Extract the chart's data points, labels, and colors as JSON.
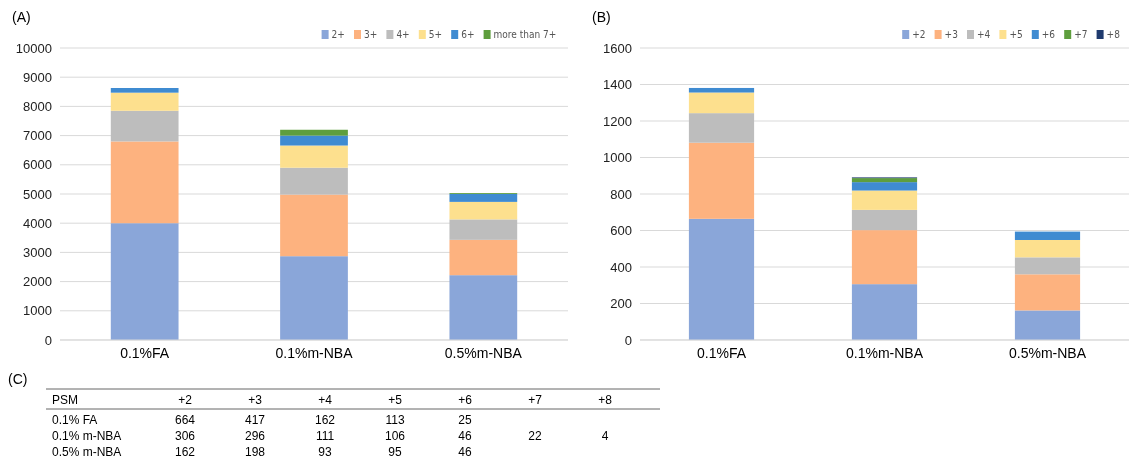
{
  "chart_data": [
    {
      "type": "bar",
      "title": "(A)",
      "stacked": true,
      "categories": [
        "0.1%FA",
        "0.1%m-NBA",
        "0.5%m-NBA"
      ],
      "ylim": [
        0,
        10000
      ],
      "yticks": [
        0,
        1000,
        2000,
        3000,
        4000,
        5000,
        6000,
        7000,
        8000,
        9000,
        10000
      ],
      "grid": "y",
      "legend": "top right",
      "series": [
        {
          "name": "2+",
          "color": "#8aa6d9",
          "values": [
            4000,
            2870,
            2220
          ]
        },
        {
          "name": "3+",
          "color": "#fdb27f",
          "values": [
            2800,
            2110,
            1210
          ]
        },
        {
          "name": "4+",
          "color": "#bdbdbd",
          "values": [
            1050,
            920,
            700
          ]
        },
        {
          "name": "5+",
          "color": "#fde08e",
          "values": [
            620,
            760,
            600
          ]
        },
        {
          "name": "6+",
          "color": "#3f8bd1",
          "values": [
            160,
            340,
            270
          ]
        },
        {
          "name": "more than 7+",
          "color": "#5e9e3d",
          "values": [
            null,
            200,
            30
          ]
        }
      ]
    },
    {
      "type": "bar",
      "title": "(B)",
      "stacked": true,
      "categories": [
        "0.1%FA",
        "0.1%m-NBA",
        "0.5%m-NBA"
      ],
      "ylim": [
        0,
        1600
      ],
      "yticks": [
        0,
        200,
        400,
        600,
        800,
        1000,
        1200,
        1400,
        1600
      ],
      "grid": "y",
      "legend": "top right",
      "series": [
        {
          "name": "+2",
          "color": "#8aa6d9",
          "values": [
            664,
            306,
            162
          ]
        },
        {
          "name": "+3",
          "color": "#fdb27f",
          "values": [
            417,
            296,
            198
          ]
        },
        {
          "name": "+4",
          "color": "#bdbdbd",
          "values": [
            162,
            111,
            93
          ]
        },
        {
          "name": "+5",
          "color": "#fde08e",
          "values": [
            113,
            106,
            95
          ]
        },
        {
          "name": "+6",
          "color": "#3f8bd1",
          "values": [
            25,
            46,
            46
          ]
        },
        {
          "name": "+7",
          "color": "#5e9e3d",
          "values": [
            null,
            22,
            null
          ]
        },
        {
          "name": "+8",
          "color": "#1f3a6e",
          "values": [
            null,
            4,
            null
          ]
        }
      ]
    },
    {
      "type": "heatmap",
      "title": "(C)",
      "xlabel": "PSM",
      "categories": [
        "+2",
        "+3",
        "+4",
        "+5",
        "+6",
        "+7",
        "+8"
      ],
      "y_categories": [
        "0.1% FA",
        "0.1% m-NBA",
        "0.5% m-NBA"
      ],
      "data_labels": true,
      "cells": [
        [
          664,
          417,
          162,
          113,
          25,
          null,
          null
        ],
        [
          306,
          296,
          111,
          106,
          46,
          22,
          4
        ],
        [
          162,
          198,
          93,
          95,
          46,
          null,
          null
        ]
      ]
    }
  ]
}
